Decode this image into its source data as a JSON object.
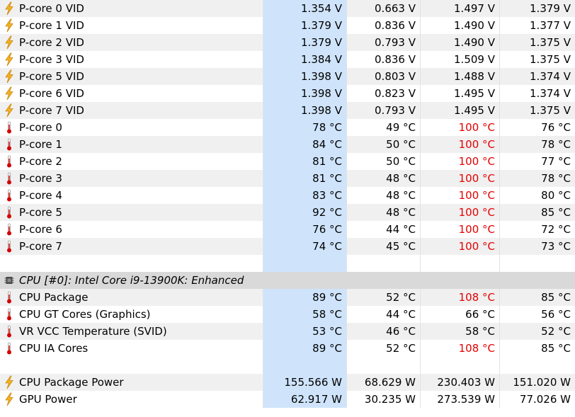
{
  "colors": {
    "selected_column": "#cfe4fb",
    "max_alert": "#e60000",
    "group_header": "#d9d9d9"
  },
  "rows": [
    {
      "type": "data",
      "icon": "lightning-icon",
      "label": "P-core 0 VID",
      "current": "1.354 V",
      "min": "0.663 V",
      "max": "1.497 V",
      "avg": "1.379 V"
    },
    {
      "type": "data",
      "icon": "lightning-icon",
      "label": "P-core 1 VID",
      "current": "1.379 V",
      "min": "0.836 V",
      "max": "1.490 V",
      "avg": "1.377 V"
    },
    {
      "type": "data",
      "icon": "lightning-icon",
      "label": "P-core 2 VID",
      "current": "1.379 V",
      "min": "0.793 V",
      "max": "1.490 V",
      "avg": "1.375 V"
    },
    {
      "type": "data",
      "icon": "lightning-icon",
      "label": "P-core 3 VID",
      "current": "1.384 V",
      "min": "0.836 V",
      "max": "1.509 V",
      "avg": "1.375 V"
    },
    {
      "type": "data",
      "icon": "lightning-icon",
      "label": "P-core 5 VID",
      "current": "1.398 V",
      "min": "0.803 V",
      "max": "1.488 V",
      "avg": "1.374 V"
    },
    {
      "type": "data",
      "icon": "lightning-icon",
      "label": "P-core 6 VID",
      "current": "1.398 V",
      "min": "0.823 V",
      "max": "1.495 V",
      "avg": "1.374 V"
    },
    {
      "type": "data",
      "icon": "lightning-icon",
      "label": "P-core 7 VID",
      "current": "1.398 V",
      "min": "0.793 V",
      "max": "1.495 V",
      "avg": "1.375 V"
    },
    {
      "type": "data",
      "icon": "thermometer-icon",
      "label": "P-core 0",
      "current": "78 °C",
      "min": "49 °C",
      "max": "100 °C",
      "max_alert": true,
      "avg": "76 °C"
    },
    {
      "type": "data",
      "icon": "thermometer-icon",
      "label": "P-core 1",
      "current": "84 °C",
      "min": "50 °C",
      "max": "100 °C",
      "max_alert": true,
      "avg": "78 °C"
    },
    {
      "type": "data",
      "icon": "thermometer-icon",
      "label": "P-core 2",
      "current": "81 °C",
      "min": "50 °C",
      "max": "100 °C",
      "max_alert": true,
      "avg": "77 °C"
    },
    {
      "type": "data",
      "icon": "thermometer-icon",
      "label": "P-core 3",
      "current": "81 °C",
      "min": "48 °C",
      "max": "100 °C",
      "max_alert": true,
      "avg": "78 °C"
    },
    {
      "type": "data",
      "icon": "thermometer-icon",
      "label": "P-core 4",
      "current": "83 °C",
      "min": "48 °C",
      "max": "100 °C",
      "max_alert": true,
      "avg": "80 °C"
    },
    {
      "type": "data",
      "icon": "thermometer-icon",
      "label": "P-core 5",
      "current": "92 °C",
      "min": "48 °C",
      "max": "100 °C",
      "max_alert": true,
      "avg": "85 °C"
    },
    {
      "type": "data",
      "icon": "thermometer-icon",
      "label": "P-core 6",
      "current": "76 °C",
      "min": "44 °C",
      "max": "100 °C",
      "max_alert": true,
      "avg": "72 °C"
    },
    {
      "type": "data",
      "icon": "thermometer-icon",
      "label": "P-core 7",
      "current": "74 °C",
      "min": "45 °C",
      "max": "100 °C",
      "max_alert": true,
      "avg": "73 °C"
    },
    {
      "type": "blank"
    },
    {
      "type": "group",
      "icon": "cpu-chip-icon",
      "label": "CPU [#0]: Intel Core i9-13900K: Enhanced"
    },
    {
      "type": "data",
      "icon": "thermometer-icon",
      "label": "CPU Package",
      "current": "89 °C",
      "min": "52 °C",
      "max": "108 °C",
      "max_alert": true,
      "avg": "85 °C"
    },
    {
      "type": "data",
      "icon": "thermometer-icon",
      "label": "CPU GT Cores (Graphics)",
      "current": "58 °C",
      "min": "44 °C",
      "max": "66 °C",
      "avg": "56 °C"
    },
    {
      "type": "data",
      "icon": "thermometer-icon",
      "label": "VR VCC Temperature (SVID)",
      "current": "53 °C",
      "min": "46 °C",
      "max": "58 °C",
      "avg": "52 °C"
    },
    {
      "type": "data",
      "icon": "thermometer-icon",
      "label": "CPU IA Cores",
      "current": "89 °C",
      "min": "52 °C",
      "max": "108 °C",
      "max_alert": true,
      "avg": "85 °C"
    },
    {
      "type": "blank"
    },
    {
      "type": "data",
      "icon": "lightning-icon",
      "label": "CPU Package Power",
      "current": "155.566 W",
      "min": "68.629 W",
      "max": "230.403 W",
      "avg": "151.020 W"
    },
    {
      "type": "data",
      "icon": "lightning-icon",
      "label": "GPU Power",
      "current": "62.917 W",
      "min": "30.235 W",
      "max": "273.539 W",
      "avg": "77.026 W"
    }
  ]
}
